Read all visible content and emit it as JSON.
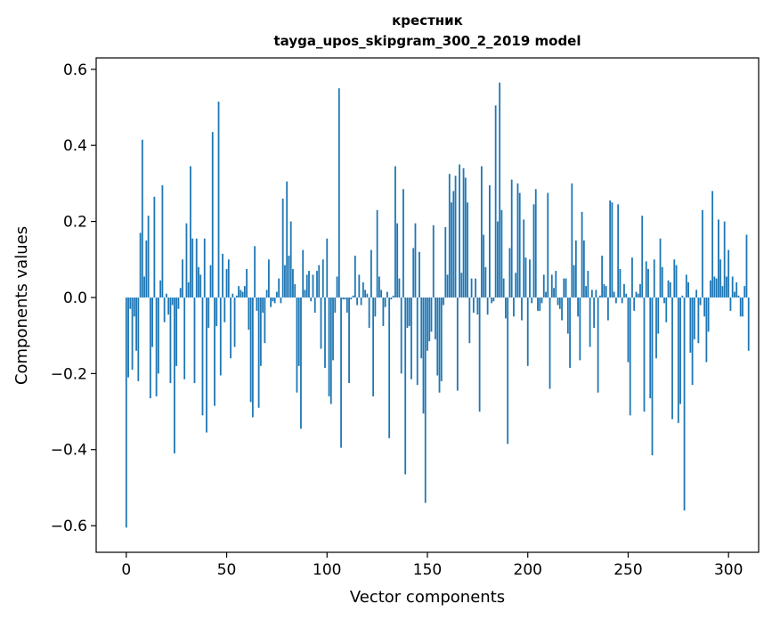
{
  "chart_data": {
    "type": "bar",
    "title_line1": "крестник",
    "title_line2": "tayga_upos_skipgram_300_2_2019 model",
    "xlabel": "Vector components",
    "ylabel": "Components values",
    "xlim": [
      -15,
      315
    ],
    "ylim": [
      -0.67,
      0.63
    ],
    "xticks": [
      0,
      50,
      100,
      150,
      200,
      250,
      300
    ],
    "xtick_labels": [
      "0",
      "50",
      "100",
      "150",
      "200",
      "250",
      "300"
    ],
    "yticks": [
      -0.6,
      -0.4,
      -0.2,
      0.0,
      0.2,
      0.4,
      0.6
    ],
    "ytick_labels": [
      "−0.6",
      "−0.4",
      "−0.2",
      "0.0",
      "0.2",
      "0.4",
      "0.6"
    ],
    "color": "#1f77b4",
    "values": [
      -0.605,
      -0.21,
      -0.03,
      -0.19,
      -0.05,
      -0.14,
      -0.22,
      0.17,
      0.415,
      0.055,
      0.15,
      0.215,
      -0.265,
      -0.13,
      0.265,
      -0.26,
      -0.2,
      0.045,
      0.295,
      -0.065,
      0.01,
      -0.045,
      -0.225,
      -0.02,
      -0.41,
      -0.18,
      -0.03,
      0.025,
      0.1,
      -0.215,
      0.195,
      0.04,
      0.345,
      0.155,
      -0.225,
      0.155,
      0.08,
      0.06,
      -0.31,
      0.155,
      -0.355,
      -0.08,
      0.085,
      0.435,
      -0.285,
      -0.075,
      0.515,
      -0.205,
      0.115,
      -0.065,
      0.075,
      0.1,
      -0.16,
      0.01,
      -0.13,
      0.005,
      0.03,
      0.02,
      0.015,
      0.03,
      0.075,
      -0.085,
      -0.275,
      -0.315,
      0.135,
      -0.035,
      -0.29,
      -0.18,
      -0.04,
      -0.12,
      0.02,
      0.1,
      -0.025,
      -0.01,
      -0.015,
      0.015,
      0.05,
      -0.015,
      0.26,
      0.085,
      0.305,
      0.11,
      0.2,
      0.075,
      0.035,
      -0.25,
      -0.18,
      -0.345,
      0.125,
      0.02,
      0.06,
      0.07,
      -0.01,
      0.06,
      -0.04,
      0.07,
      0.085,
      -0.135,
      0.1,
      -0.185,
      0.155,
      -0.26,
      -0.28,
      -0.165,
      -0.04,
      0.055,
      0.55,
      -0.395,
      -0.005,
      -0.005,
      -0.04,
      -0.225,
      -0.005,
      0.005,
      0.11,
      -0.02,
      0.06,
      -0.02,
      0.04,
      0.02,
      0.01,
      -0.08,
      0.125,
      -0.26,
      -0.05,
      0.23,
      0.055,
      0.02,
      -0.075,
      -0.025,
      0.015,
      -0.37,
      -0.005,
      0.005,
      0.345,
      0.195,
      0.05,
      -0.2,
      0.285,
      -0.465,
      -0.08,
      -0.075,
      -0.215,
      0.13,
      0.195,
      -0.23,
      0.12,
      -0.16,
      -0.305,
      -0.54,
      -0.14,
      -0.115,
      -0.09,
      0.19,
      -0.11,
      -0.205,
      -0.25,
      -0.22,
      -0.02,
      0.185,
      0.06,
      0.325,
      0.25,
      0.28,
      0.32,
      -0.245,
      0.35,
      0.065,
      0.34,
      0.315,
      0.25,
      -0.12,
      0.05,
      -0.04,
      0.05,
      -0.045,
      -0.3,
      0.345,
      0.165,
      0.08,
      -0.045,
      0.295,
      -0.015,
      -0.01,
      0.505,
      0.2,
      0.565,
      0.23,
      0.05,
      -0.055,
      -0.385,
      0.13,
      0.31,
      -0.05,
      0.065,
      0.3,
      0.275,
      -0.06,
      0.205,
      0.105,
      -0.18,
      0.1,
      -0.015,
      0.245,
      0.285,
      -0.035,
      -0.035,
      -0.015,
      0.06,
      0.015,
      0.275,
      -0.24,
      0.06,
      0.025,
      0.07,
      -0.02,
      -0.03,
      -0.06,
      0.05,
      0.05,
      -0.095,
      -0.185,
      0.3,
      0.085,
      0.15,
      -0.05,
      -0.165,
      0.225,
      0.15,
      0.03,
      0.07,
      -0.13,
      0.02,
      -0.08,
      0.02,
      -0.25,
      0.005,
      0.11,
      0.035,
      0.03,
      -0.06,
      0.255,
      0.25,
      0.015,
      -0.015,
      0.245,
      0.075,
      -0.015,
      0.035,
      0.01,
      -0.17,
      -0.31,
      0.105,
      -0.035,
      0.015,
      0.01,
      0.035,
      0.215,
      -0.3,
      0.095,
      0.075,
      -0.265,
      -0.415,
      0.1,
      -0.16,
      -0.095,
      0.155,
      0.08,
      -0.015,
      -0.065,
      0.045,
      0.04,
      -0.32,
      0.1,
      0.085,
      -0.33,
      -0.28,
      0.005,
      -0.56,
      0.06,
      0.04,
      -0.145,
      -0.23,
      -0.11,
      0.02,
      -0.12,
      -0.02,
      0.23,
      -0.05,
      -0.17,
      -0.09,
      0.045,
      0.28,
      0.055,
      0.05,
      0.205,
      0.1,
      0.03,
      0.2,
      0.055,
      0.125,
      -0.035,
      0.055,
      0.015,
      0.04,
      0.005,
      -0.05,
      -0.05,
      0.03,
      0.165,
      -0.14
    ]
  }
}
